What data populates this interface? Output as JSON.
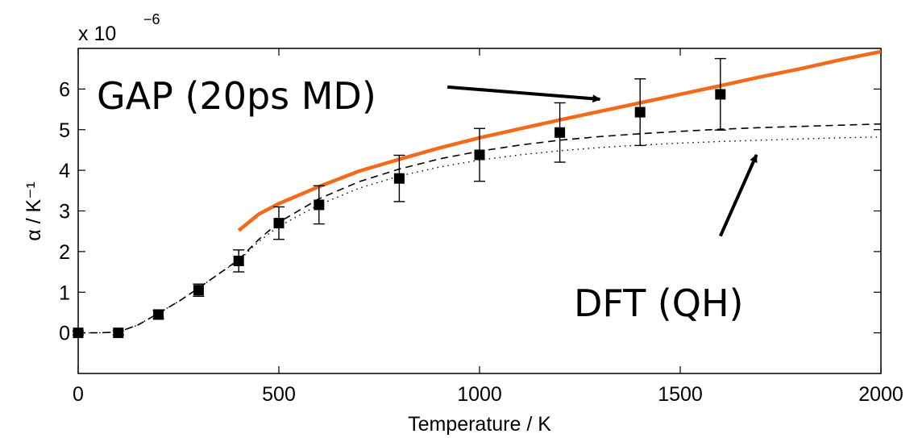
{
  "chart_data": {
    "type": "line",
    "title": "",
    "xlabel": "Temperature / K",
    "ylabel": "α / K⁻¹",
    "multiplier": "x 10",
    "multiplier_exp": "−6",
    "xlim": [
      0,
      2000
    ],
    "ylim": [
      -1,
      7
    ],
    "xticks": [
      "0",
      "500",
      "1000",
      "1500",
      "2000"
    ],
    "xtick_values": [
      0,
      500,
      1000,
      1500,
      2000
    ],
    "yticks": [
      "0",
      "1",
      "2",
      "3",
      "4",
      "5",
      "6"
    ],
    "ytick_values": [
      0,
      1,
      2,
      3,
      4,
      5,
      6
    ],
    "grid": false,
    "series": [
      {
        "style": "solid",
        "color": "#f26b1d",
        "x": [
          400,
          450,
          500,
          600,
          700,
          800,
          900,
          1000,
          1100,
          1200,
          1300,
          1400,
          1500,
          1600,
          1700,
          1800,
          1900,
          2000
        ],
        "y": [
          2.52,
          2.92,
          3.18,
          3.6,
          3.98,
          4.27,
          4.55,
          4.8,
          5.02,
          5.24,
          5.45,
          5.66,
          5.87,
          6.08,
          6.3,
          6.5,
          6.72,
          6.92
        ]
      },
      {
        "style": "dashed",
        "color": "#000000",
        "x": [
          0,
          50,
          100,
          150,
          200,
          250,
          300,
          350,
          400,
          450,
          500,
          600,
          700,
          800,
          900,
          1000,
          1100,
          1200,
          1300,
          1400,
          1500,
          1600,
          1700,
          1800,
          1900,
          2000
        ],
        "y": [
          0,
          0,
          0.02,
          0.2,
          0.48,
          0.77,
          1.1,
          1.45,
          1.8,
          2.3,
          2.72,
          3.3,
          3.72,
          4.03,
          4.28,
          4.47,
          4.62,
          4.74,
          4.83,
          4.9,
          4.96,
          5.01,
          5.05,
          5.08,
          5.11,
          5.14
        ]
      },
      {
        "style": "dotted",
        "color": "#000000",
        "x": [
          0,
          50,
          100,
          150,
          200,
          250,
          300,
          350,
          400,
          450,
          500,
          600,
          700,
          800,
          900,
          1000,
          1100,
          1200,
          1300,
          1400,
          1500,
          1600,
          1700,
          1800,
          1900,
          2000
        ],
        "y": [
          0,
          0,
          0.02,
          0.2,
          0.48,
          0.77,
          1.1,
          1.45,
          1.78,
          2.25,
          2.62,
          3.15,
          3.56,
          3.86,
          4.08,
          4.25,
          4.38,
          4.48,
          4.56,
          4.62,
          4.67,
          4.71,
          4.74,
          4.77,
          4.8,
          4.82
        ]
      },
      {
        "style": "markers-errorbars",
        "color": "#000000",
        "x": [
          0,
          100,
          200,
          300,
          400,
          500,
          600,
          800,
          1000,
          1200,
          1400,
          1600
        ],
        "y": [
          0,
          0,
          0.45,
          1.05,
          1.77,
          2.7,
          3.15,
          3.8,
          4.38,
          4.93,
          5.43,
          5.87
        ],
        "err": [
          0.05,
          0.05,
          0.1,
          0.15,
          0.27,
          0.4,
          0.47,
          0.57,
          0.65,
          0.73,
          0.82,
          0.88
        ]
      }
    ],
    "annotations": [
      {
        "text": "GAP (20ps MD)",
        "arrow_from": [
          920,
          6.05
        ],
        "arrow_to": [
          1300,
          5.75
        ]
      },
      {
        "text": "DFT (QH)",
        "arrow_from": [
          1600,
          2.38
        ],
        "arrow_to": [
          1690,
          4.38
        ]
      }
    ]
  }
}
